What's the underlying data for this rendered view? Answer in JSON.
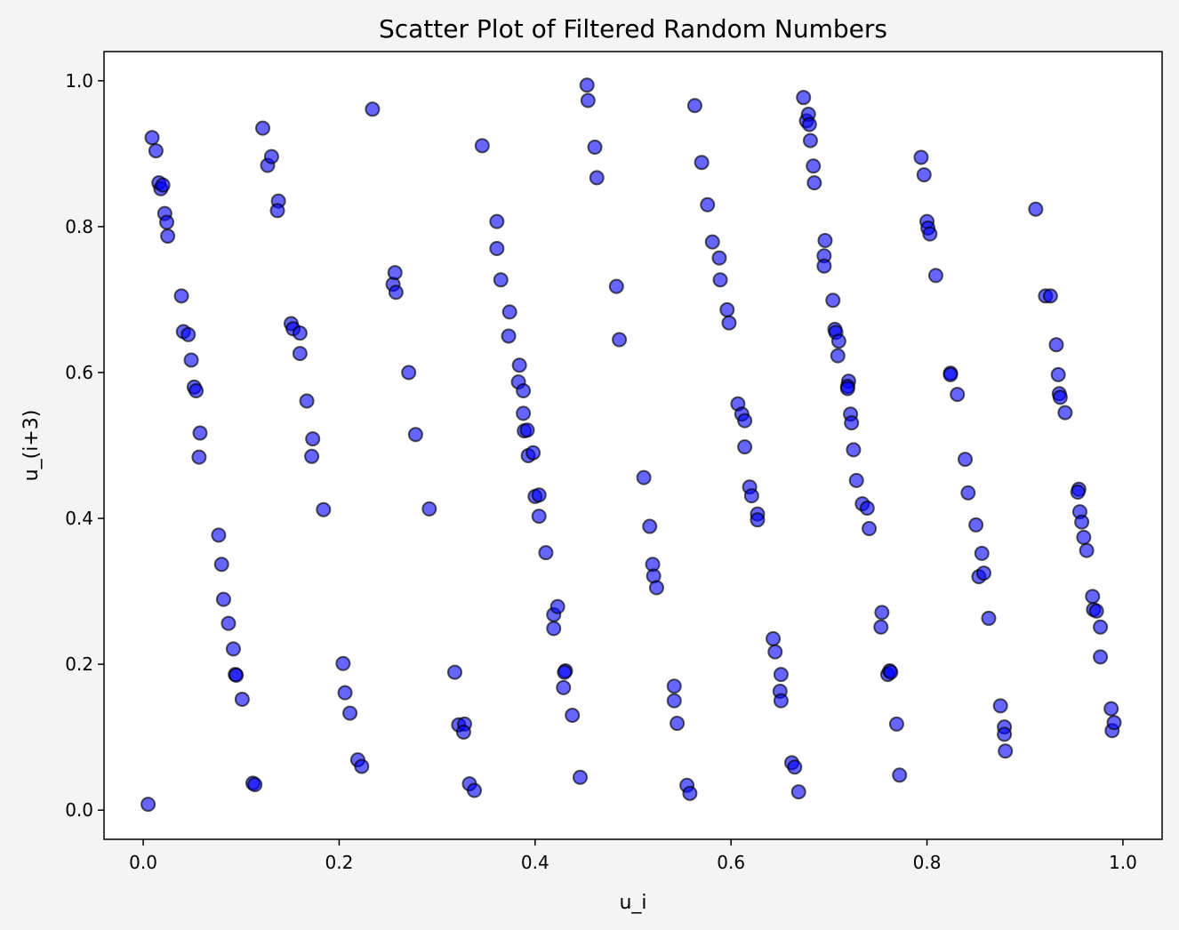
{
  "chart_data": {
    "type": "scatter",
    "title": "Scatter Plot of Filtered Random Numbers",
    "xlabel": "u_i",
    "ylabel": "u_(i+3)",
    "xlim": [
      -0.04,
      1.04
    ],
    "ylim": [
      -0.04,
      1.04
    ],
    "xticks": [
      "0.0",
      "0.2",
      "0.4",
      "0.6",
      "0.8",
      "1.0"
    ],
    "yticks": [
      "0.0",
      "0.2",
      "0.4",
      "0.6",
      "0.8",
      "1.0"
    ],
    "grid": false,
    "marker_fill": "#0000ff",
    "marker_fill_opacity": 0.6,
    "marker_edge": "#000000",
    "background": "#f4f4f4",
    "plot_background": "#ffffff",
    "points": [
      [
        0.005,
        0.008
      ],
      [
        0.009,
        0.922
      ],
      [
        0.013,
        0.904
      ],
      [
        0.016,
        0.86
      ],
      [
        0.018,
        0.852
      ],
      [
        0.02,
        0.857
      ],
      [
        0.022,
        0.818
      ],
      [
        0.024,
        0.806
      ],
      [
        0.025,
        0.787
      ],
      [
        0.039,
        0.705
      ],
      [
        0.041,
        0.656
      ],
      [
        0.046,
        0.652
      ],
      [
        0.049,
        0.617
      ],
      [
        0.052,
        0.58
      ],
      [
        0.054,
        0.575
      ],
      [
        0.058,
        0.517
      ],
      [
        0.057,
        0.484
      ],
      [
        0.077,
        0.377
      ],
      [
        0.08,
        0.337
      ],
      [
        0.082,
        0.289
      ],
      [
        0.087,
        0.256
      ],
      [
        0.092,
        0.221
      ],
      [
        0.094,
        0.186
      ],
      [
        0.095,
        0.185
      ],
      [
        0.101,
        0.152
      ],
      [
        0.112,
        0.037
      ],
      [
        0.114,
        0.035
      ],
      [
        0.122,
        0.935
      ],
      [
        0.127,
        0.884
      ],
      [
        0.131,
        0.896
      ],
      [
        0.138,
        0.835
      ],
      [
        0.137,
        0.822
      ],
      [
        0.151,
        0.667
      ],
      [
        0.153,
        0.66
      ],
      [
        0.16,
        0.654
      ],
      [
        0.16,
        0.626
      ],
      [
        0.167,
        0.561
      ],
      [
        0.173,
        0.509
      ],
      [
        0.172,
        0.485
      ],
      [
        0.184,
        0.412
      ],
      [
        0.204,
        0.201
      ],
      [
        0.206,
        0.161
      ],
      [
        0.211,
        0.133
      ],
      [
        0.219,
        0.069
      ],
      [
        0.223,
        0.06
      ],
      [
        0.234,
        0.961
      ],
      [
        0.255,
        0.721
      ],
      [
        0.257,
        0.737
      ],
      [
        0.258,
        0.71
      ],
      [
        0.271,
        0.6
      ],
      [
        0.278,
        0.515
      ],
      [
        0.292,
        0.413
      ],
      [
        0.318,
        0.189
      ],
      [
        0.322,
        0.117
      ],
      [
        0.328,
        0.118
      ],
      [
        0.327,
        0.107
      ],
      [
        0.333,
        0.036
      ],
      [
        0.338,
        0.027
      ],
      [
        0.346,
        0.911
      ],
      [
        0.361,
        0.807
      ],
      [
        0.361,
        0.77
      ],
      [
        0.365,
        0.727
      ],
      [
        0.374,
        0.683
      ],
      [
        0.373,
        0.65
      ],
      [
        0.384,
        0.61
      ],
      [
        0.383,
        0.587
      ],
      [
        0.388,
        0.575
      ],
      [
        0.388,
        0.544
      ],
      [
        0.389,
        0.52
      ],
      [
        0.392,
        0.521
      ],
      [
        0.393,
        0.486
      ],
      [
        0.398,
        0.49
      ],
      [
        0.4,
        0.43
      ],
      [
        0.404,
        0.432
      ],
      [
        0.404,
        0.403
      ],
      [
        0.411,
        0.353
      ],
      [
        0.419,
        0.268
      ],
      [
        0.423,
        0.279
      ],
      [
        0.419,
        0.249
      ],
      [
        0.431,
        0.191
      ],
      [
        0.43,
        0.189
      ],
      [
        0.429,
        0.168
      ],
      [
        0.438,
        0.13
      ],
      [
        0.446,
        0.045
      ],
      [
        0.453,
        0.994
      ],
      [
        0.454,
        0.973
      ],
      [
        0.461,
        0.909
      ],
      [
        0.463,
        0.867
      ],
      [
        0.483,
        0.718
      ],
      [
        0.486,
        0.645
      ],
      [
        0.511,
        0.456
      ],
      [
        0.517,
        0.389
      ],
      [
        0.52,
        0.337
      ],
      [
        0.521,
        0.321
      ],
      [
        0.524,
        0.305
      ],
      [
        0.542,
        0.17
      ],
      [
        0.542,
        0.15
      ],
      [
        0.545,
        0.119
      ],
      [
        0.555,
        0.034
      ],
      [
        0.558,
        0.023
      ],
      [
        0.563,
        0.966
      ],
      [
        0.57,
        0.888
      ],
      [
        0.576,
        0.83
      ],
      [
        0.581,
        0.779
      ],
      [
        0.588,
        0.757
      ],
      [
        0.589,
        0.727
      ],
      [
        0.596,
        0.686
      ],
      [
        0.598,
        0.668
      ],
      [
        0.607,
        0.557
      ],
      [
        0.611,
        0.543
      ],
      [
        0.614,
        0.534
      ],
      [
        0.614,
        0.498
      ],
      [
        0.619,
        0.443
      ],
      [
        0.621,
        0.431
      ],
      [
        0.627,
        0.406
      ],
      [
        0.627,
        0.398
      ],
      [
        0.643,
        0.235
      ],
      [
        0.645,
        0.217
      ],
      [
        0.651,
        0.186
      ],
      [
        0.65,
        0.163
      ],
      [
        0.651,
        0.15
      ],
      [
        0.662,
        0.065
      ],
      [
        0.665,
        0.059
      ],
      [
        0.669,
        0.025
      ],
      [
        0.674,
        0.977
      ],
      [
        0.677,
        0.945
      ],
      [
        0.679,
        0.954
      ],
      [
        0.68,
        0.94
      ],
      [
        0.681,
        0.918
      ],
      [
        0.684,
        0.883
      ],
      [
        0.685,
        0.86
      ],
      [
        0.696,
        0.781
      ],
      [
        0.695,
        0.76
      ],
      [
        0.695,
        0.746
      ],
      [
        0.704,
        0.699
      ],
      [
        0.706,
        0.659
      ],
      [
        0.707,
        0.655
      ],
      [
        0.71,
        0.643
      ],
      [
        0.709,
        0.623
      ],
      [
        0.72,
        0.588
      ],
      [
        0.719,
        0.581
      ],
      [
        0.719,
        0.578
      ],
      [
        0.722,
        0.543
      ],
      [
        0.723,
        0.531
      ],
      [
        0.725,
        0.494
      ],
      [
        0.728,
        0.452
      ],
      [
        0.734,
        0.42
      ],
      [
        0.739,
        0.414
      ],
      [
        0.741,
        0.386
      ],
      [
        0.754,
        0.271
      ],
      [
        0.753,
        0.251
      ],
      [
        0.76,
        0.186
      ],
      [
        0.762,
        0.191
      ],
      [
        0.763,
        0.189
      ],
      [
        0.769,
        0.118
      ],
      [
        0.772,
        0.048
      ],
      [
        0.794,
        0.895
      ],
      [
        0.797,
        0.871
      ],
      [
        0.8,
        0.807
      ],
      [
        0.801,
        0.798
      ],
      [
        0.803,
        0.79
      ],
      [
        0.809,
        0.733
      ],
      [
        0.824,
        0.599
      ],
      [
        0.824,
        0.597
      ],
      [
        0.831,
        0.57
      ],
      [
        0.839,
        0.481
      ],
      [
        0.842,
        0.435
      ],
      [
        0.85,
        0.391
      ],
      [
        0.856,
        0.352
      ],
      [
        0.853,
        0.32
      ],
      [
        0.858,
        0.325
      ],
      [
        0.863,
        0.263
      ],
      [
        0.875,
        0.143
      ],
      [
        0.879,
        0.114
      ],
      [
        0.879,
        0.104
      ],
      [
        0.88,
        0.081
      ],
      [
        0.911,
        0.824
      ],
      [
        0.921,
        0.705
      ],
      [
        0.926,
        0.705
      ],
      [
        0.932,
        0.638
      ],
      [
        0.934,
        0.597
      ],
      [
        0.935,
        0.571
      ],
      [
        0.936,
        0.566
      ],
      [
        0.941,
        0.545
      ],
      [
        0.955,
        0.44
      ],
      [
        0.954,
        0.436
      ],
      [
        0.956,
        0.409
      ],
      [
        0.958,
        0.395
      ],
      [
        0.96,
        0.374
      ],
      [
        0.963,
        0.356
      ],
      [
        0.969,
        0.293
      ],
      [
        0.97,
        0.275
      ],
      [
        0.973,
        0.273
      ],
      [
        0.977,
        0.251
      ],
      [
        0.977,
        0.21
      ],
      [
        0.988,
        0.139
      ],
      [
        0.989,
        0.109
      ],
      [
        0.991,
        0.12
      ]
    ]
  }
}
